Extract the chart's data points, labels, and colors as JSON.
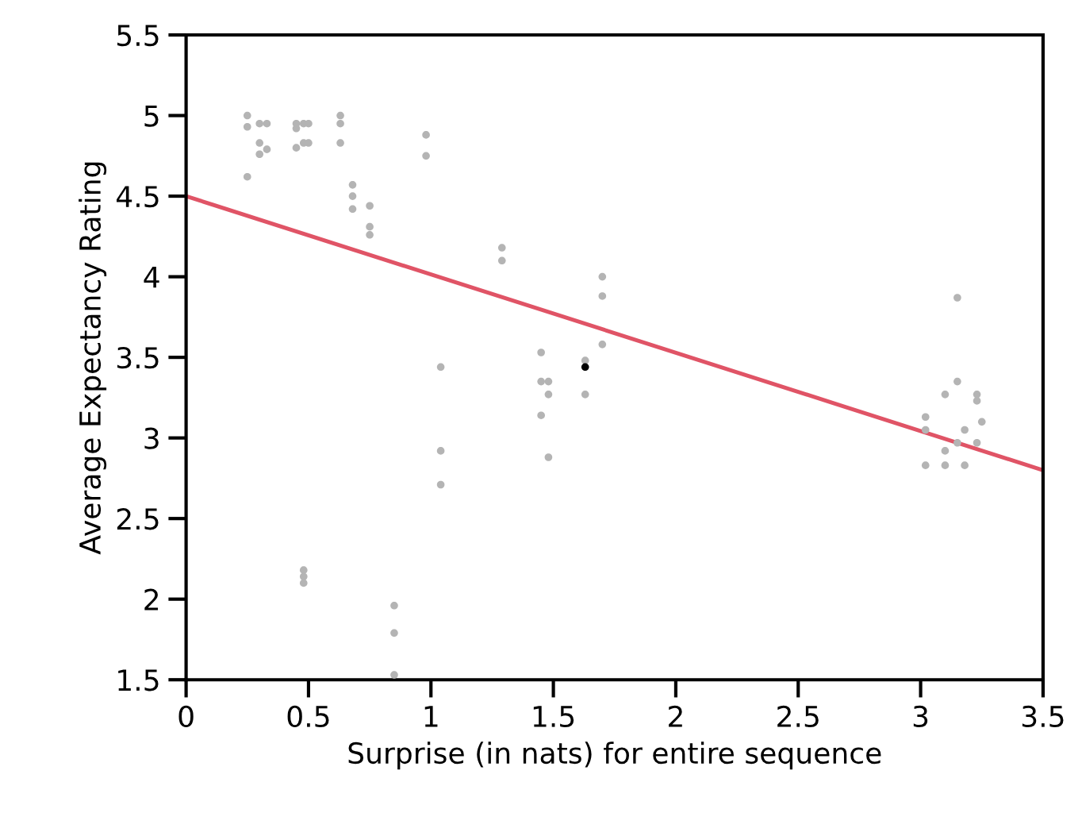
{
  "chart_data": {
    "type": "scatter",
    "xlabel": "Surprise (in nats) for entire sequence",
    "ylabel": "Average Expectancy Rating",
    "xlim": [
      0,
      3.5
    ],
    "ylim": [
      1.5,
      5.5
    ],
    "xticks": [
      0,
      0.5,
      1,
      1.5,
      2,
      2.5,
      3,
      3.5
    ],
    "yticks": [
      1.5,
      2,
      2.5,
      3,
      3.5,
      4,
      4.5,
      5,
      5.5
    ],
    "grid": false,
    "legend": false,
    "marker": "circle",
    "series": [
      {
        "color": "#b4b4b4",
        "x": [
          0.25,
          0.25,
          0.25,
          0.3,
          0.3,
          0.3,
          0.33,
          0.33,
          0.45,
          0.45,
          0.45,
          0.48,
          0.48,
          0.5,
          0.5,
          0.48,
          0.48,
          0.48,
          0.63,
          0.63,
          0.63,
          0.68,
          0.68,
          0.68,
          0.75,
          0.75,
          0.75,
          0.85,
          0.85,
          0.85,
          0.98,
          0.98,
          1.04,
          1.04,
          1.04,
          1.29,
          1.29,
          1.45,
          1.45,
          1.45,
          1.48,
          1.48,
          1.48,
          1.63,
          1.63,
          1.7,
          1.7,
          1.7,
          3.02,
          3.02,
          3.02,
          3.1,
          3.1,
          3.1,
          3.15,
          3.15,
          3.15,
          3.18,
          3.18,
          3.23,
          3.23,
          3.23,
          3.25
        ],
        "values": [
          5.0,
          4.93,
          4.62,
          4.95,
          4.83,
          4.76,
          4.95,
          4.79,
          4.95,
          4.92,
          4.8,
          4.95,
          4.83,
          4.95,
          4.83,
          2.18,
          2.14,
          2.1,
          5.0,
          4.95,
          4.83,
          4.57,
          4.5,
          4.42,
          4.44,
          4.31,
          4.26,
          1.96,
          1.79,
          1.53,
          4.88,
          4.75,
          3.44,
          2.92,
          2.71,
          4.18,
          4.1,
          3.53,
          3.35,
          3.14,
          3.35,
          3.27,
          2.88,
          3.48,
          3.27,
          4.0,
          3.88,
          3.58,
          3.13,
          3.05,
          2.83,
          3.27,
          2.92,
          2.83,
          3.87,
          3.35,
          2.97,
          3.05,
          2.83,
          3.27,
          3.23,
          2.97,
          3.1
        ]
      },
      {
        "color": "#000000",
        "x": [
          1.63
        ],
        "values": [
          3.44
        ]
      },
      {
        "type": "line",
        "color": "#e05466",
        "marker": "none",
        "x": [
          0,
          3.5
        ],
        "values": [
          4.5,
          2.8
        ]
      }
    ]
  }
}
